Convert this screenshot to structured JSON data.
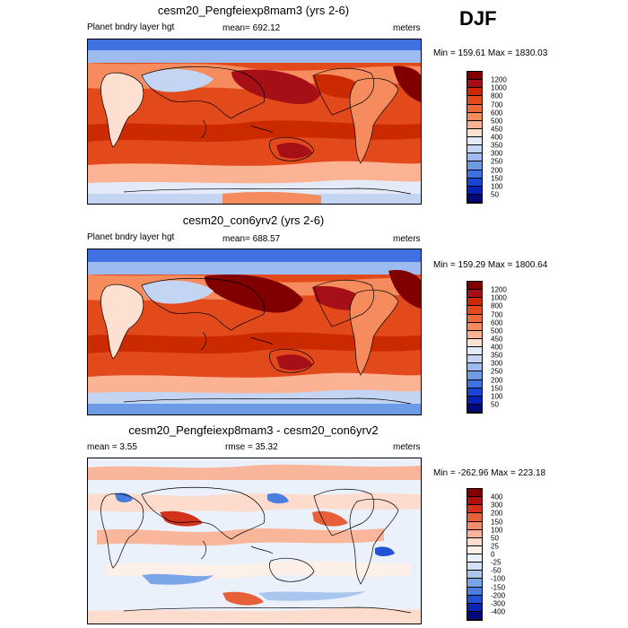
{
  "season": "DJF",
  "panels": [
    {
      "title": "cesm20_Pengfeiexp8mam3 (yrs 2-6)",
      "left_label": "Planet bndry layer hgt",
      "center_label": "mean= 692.12",
      "right_label": "meters",
      "minmax": "Min = 159.61 Max = 1830.03",
      "colorbar_labels": [
        "1200",
        "1000",
        "800",
        "700",
        "600",
        "500",
        "450",
        "400",
        "350",
        "300",
        "250",
        "200",
        "150",
        "100",
        "50"
      ]
    },
    {
      "title": "cesm20_con6yrv2 (yrs 2-6)",
      "left_label": "Planet bndry layer hgt",
      "center_label": "mean= 688.57",
      "right_label": "meters",
      "minmax": "Min = 159.29 Max = 1800.64",
      "colorbar_labels": [
        "1200",
        "1000",
        "800",
        "700",
        "600",
        "500",
        "450",
        "400",
        "350",
        "300",
        "250",
        "200",
        "150",
        "100",
        "50"
      ]
    },
    {
      "title": "cesm20_Pengfeiexp8mam3 - cesm20_con6yrv2",
      "left_label": "mean =   3.55",
      "center_label": "rmse =  35.32",
      "right_label": "meters",
      "minmax": "Min = -262.96 Max = 223.18",
      "colorbar_labels": [
        "400",
        "300",
        "200",
        "150",
        "100",
        "50",
        "25",
        "0",
        "-25",
        "-50",
        "-100",
        "-150",
        "-200",
        "-300",
        "-400"
      ]
    }
  ],
  "colors": {
    "abs_scale": [
      "#800000",
      "#a50f15",
      "#cb2a00",
      "#e34a1b",
      "#ee6a3a",
      "#f68c5e",
      "#fbb394",
      "#fde0cf",
      "#e3ebf8",
      "#c3d5f3",
      "#9dbbee",
      "#6e9be6",
      "#3f71e0",
      "#1845d6",
      "#0620b8",
      "#00087a"
    ],
    "diff_scale": [
      "#800000",
      "#b00f0f",
      "#d2311a",
      "#e8603a",
      "#f38d67",
      "#f9b69b",
      "#fddccd",
      "#fdf0e8",
      "#eaf1fb",
      "#d2e1f6",
      "#a9c6ef",
      "#7aa6e8",
      "#4a7ede",
      "#2252d4",
      "#0a26b4",
      "#00087a"
    ],
    "coast": "#000000"
  }
}
